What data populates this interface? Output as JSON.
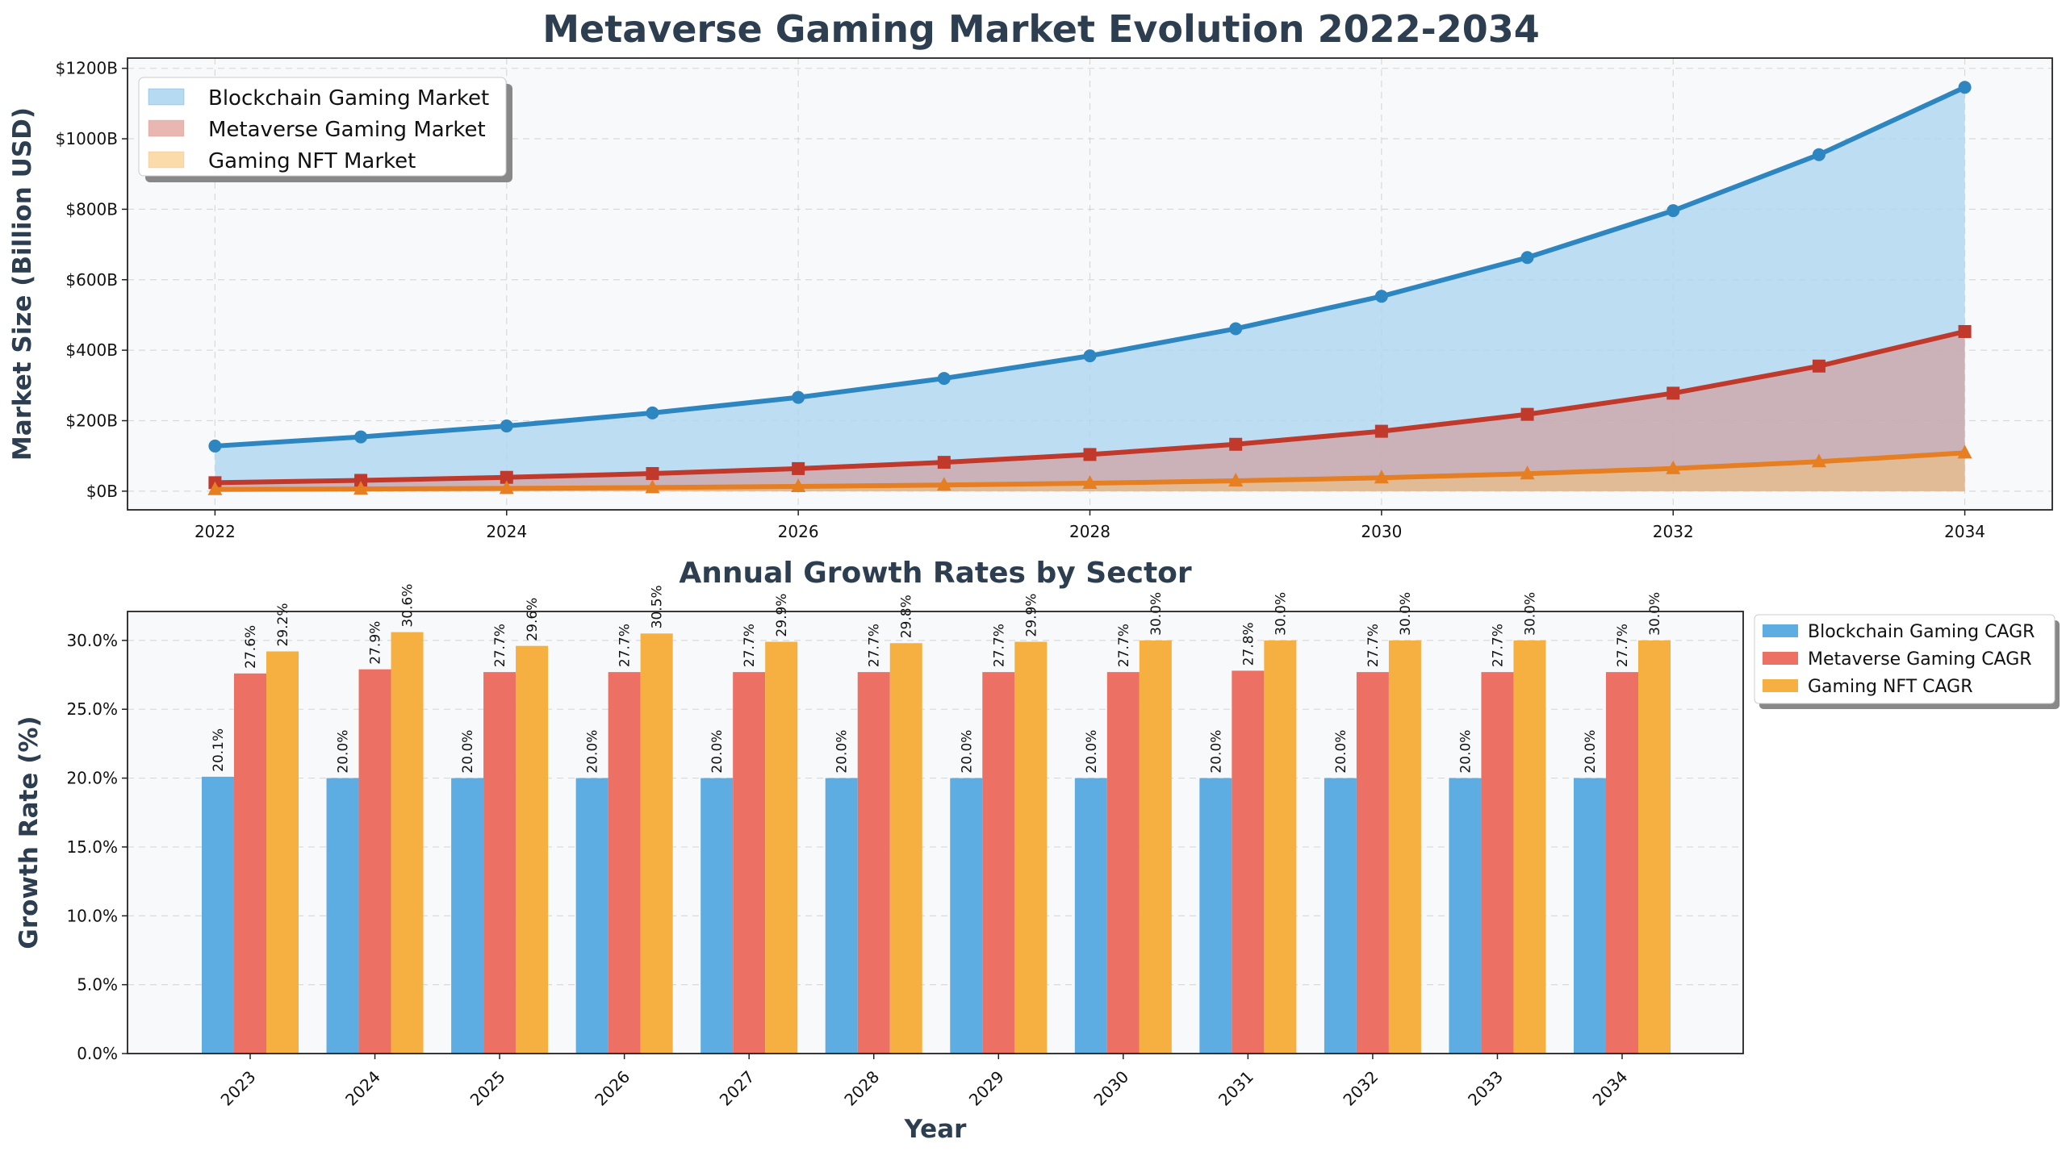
{
  "title": "Metaverse Gaming Market Evolution 2022-2034",
  "colors": {
    "blockchain": "#2e86c1",
    "metaverse": "#c0392b",
    "nft": "#e67e22",
    "bar_blockchain": "#5dade2",
    "bar_metaverse": "#ec7063",
    "bar_nft": "#f5b041",
    "plot_bg": "#f8f9fa"
  },
  "chart_data": [
    {
      "type": "area",
      "title": "",
      "xlabel": "",
      "ylabel": "Market Size (Billion USD)",
      "x": [
        2022,
        2023,
        2024,
        2025,
        2026,
        2027,
        2028,
        2029,
        2030,
        2031,
        2032,
        2033,
        2034
      ],
      "xticks": [
        "2022",
        "2024",
        "2026",
        "2028",
        "2030",
        "2032",
        "2034"
      ],
      "yticks": [
        "$0B",
        "$200B",
        "$400B",
        "$600B",
        "$800B",
        "$1000B",
        "$1200B"
      ],
      "ylim": [
        -53,
        1229
      ],
      "xlim": [
        2021.4,
        2034.6
      ],
      "grid": true,
      "legend": "top-left",
      "series": [
        {
          "name": "Blockchain Gaming Market",
          "marker": "circle",
          "values": [
            128,
            154,
            185,
            222,
            266,
            320,
            384,
            461,
            553,
            663,
            796,
            955,
            1146
          ]
        },
        {
          "name": "Metaverse Gaming Market",
          "marker": "square",
          "values": [
            24,
            30.6,
            39.2,
            50,
            64,
            81.8,
            104,
            133,
            170,
            218,
            278,
            355,
            453
          ]
        },
        {
          "name": "Gaming NFT Market",
          "marker": "triangle",
          "values": [
            4.7,
            6.1,
            7.9,
            10.3,
            13.4,
            17.4,
            22.6,
            29.3,
            38.1,
            49.5,
            64.4,
            83.7,
            108.8
          ]
        }
      ]
    },
    {
      "type": "bar",
      "title": "Annual Growth Rates by Sector",
      "xlabel": "Year",
      "ylabel": "Growth Rate (%)",
      "categories": [
        "2023",
        "2024",
        "2025",
        "2026",
        "2027",
        "2028",
        "2029",
        "2030",
        "2031",
        "2032",
        "2033",
        "2034"
      ],
      "yticks": [
        "0.0%",
        "5.0%",
        "10.0%",
        "15.0%",
        "20.0%",
        "25.0%",
        "30.0%"
      ],
      "ylim": [
        0,
        32.1
      ],
      "grid": true,
      "legend": "top-right",
      "series": [
        {
          "name": "Blockchain Gaming CAGR",
          "values": [
            20.1,
            20.0,
            20.0,
            20.0,
            20.0,
            20.0,
            20.0,
            20.0,
            20.0,
            20.0,
            20.0,
            20.0
          ],
          "labels": [
            "20.1%",
            "20.0%",
            "20.0%",
            "20.0%",
            "20.0%",
            "20.0%",
            "20.0%",
            "20.0%",
            "20.0%",
            "20.0%",
            "20.0%",
            "20.0%"
          ]
        },
        {
          "name": "Metaverse Gaming CAGR",
          "values": [
            27.6,
            27.9,
            27.7,
            27.7,
            27.7,
            27.7,
            27.7,
            27.7,
            27.8,
            27.7,
            27.7,
            27.7
          ],
          "labels": [
            "27.6%",
            "27.9%",
            "27.7%",
            "27.7%",
            "27.7%",
            "27.7%",
            "27.7%",
            "27.7%",
            "27.8%",
            "27.7%",
            "27.7%",
            "27.7%"
          ]
        },
        {
          "name": "Gaming NFT CAGR",
          "values": [
            29.2,
            30.6,
            29.6,
            30.5,
            29.9,
            29.8,
            29.9,
            30.0,
            30.0,
            30.0,
            30.0,
            30.0
          ],
          "labels": [
            "29.2%",
            "30.6%",
            "29.6%",
            "30.5%",
            "29.9%",
            "29.8%",
            "29.9%",
            "30.0%",
            "30.0%",
            "30.0%",
            "30.0%",
            "30.0%"
          ]
        }
      ]
    }
  ]
}
